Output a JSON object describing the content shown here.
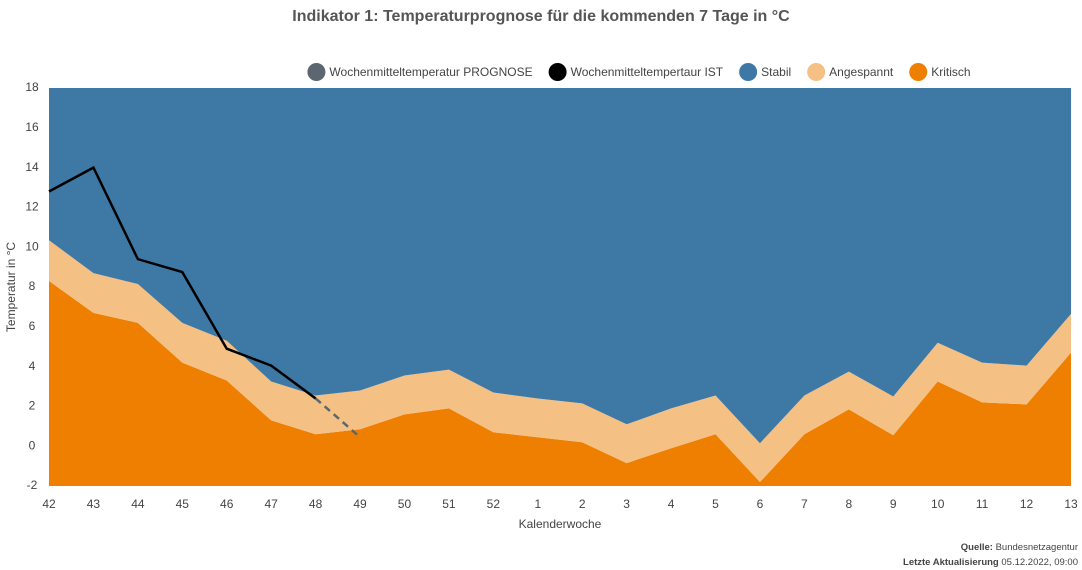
{
  "chart_data": {
    "type": "area",
    "title": "Indikator 1: Temperaturprognose für die kommenden 7 Tage in °C",
    "x_label": "Kalenderwoche",
    "y_label": "Temperatur in °C",
    "categories": [
      "42",
      "43",
      "44",
      "45",
      "46",
      "47",
      "48",
      "49",
      "50",
      "51",
      "52",
      "1",
      "2",
      "3",
      "4",
      "5",
      "6",
      "7",
      "8",
      "9",
      "10",
      "11",
      "12",
      "13"
    ],
    "ylim": [
      -2,
      18
    ],
    "yticks": [
      -2,
      0,
      2,
      4,
      6,
      8,
      10,
      12,
      14,
      16,
      18
    ],
    "grid": false,
    "legend": "top",
    "series": [
      {
        "name": "Wochenmitteltemperatur PROGNOSE",
        "type": "line",
        "dashed": true,
        "color": "#5c6670",
        "values": [
          null,
          null,
          null,
          null,
          null,
          null,
          2.4,
          0.45,
          null,
          null,
          null,
          null,
          null,
          null,
          null,
          null,
          null,
          null,
          null,
          null,
          null,
          null,
          null,
          null
        ]
      },
      {
        "name": "Wochenmitteltempertaur IST",
        "type": "line",
        "dashed": false,
        "color": "#000000",
        "values": [
          12.8,
          14.0,
          9.4,
          8.75,
          4.9,
          4.05,
          2.4,
          null,
          null,
          null,
          null,
          null,
          null,
          null,
          null,
          null,
          null,
          null,
          null,
          null,
          null,
          null,
          null,
          null
        ]
      },
      {
        "name": "Stabil",
        "type": "area",
        "color": "#3e79a6"
      },
      {
        "name": "Angespannt",
        "type": "area",
        "color": "#f5c083",
        "values": [
          10.35,
          8.7,
          8.15,
          6.2,
          5.3,
          3.25,
          2.55,
          2.8,
          3.55,
          3.85,
          2.7,
          2.4,
          2.15,
          1.1,
          1.9,
          2.55,
          0.15,
          2.55,
          3.75,
          2.5,
          5.2,
          4.2,
          4.05,
          6.65
        ]
      },
      {
        "name": "Kritisch",
        "type": "area",
        "color": "#ee7f00",
        "values": [
          8.3,
          6.7,
          6.2,
          4.2,
          3.3,
          1.3,
          0.6,
          0.85,
          1.6,
          1.9,
          0.7,
          0.45,
          0.2,
          -0.85,
          -0.1,
          0.6,
          -1.8,
          0.6,
          1.85,
          0.55,
          3.25,
          2.2,
          2.1,
          4.7
        ]
      }
    ],
    "source_label": "Quelle:",
    "source": "Bundesnetzagentur",
    "updated_label": "Letzte Aktualisierung",
    "updated": "05.12.2022, 09:00"
  }
}
